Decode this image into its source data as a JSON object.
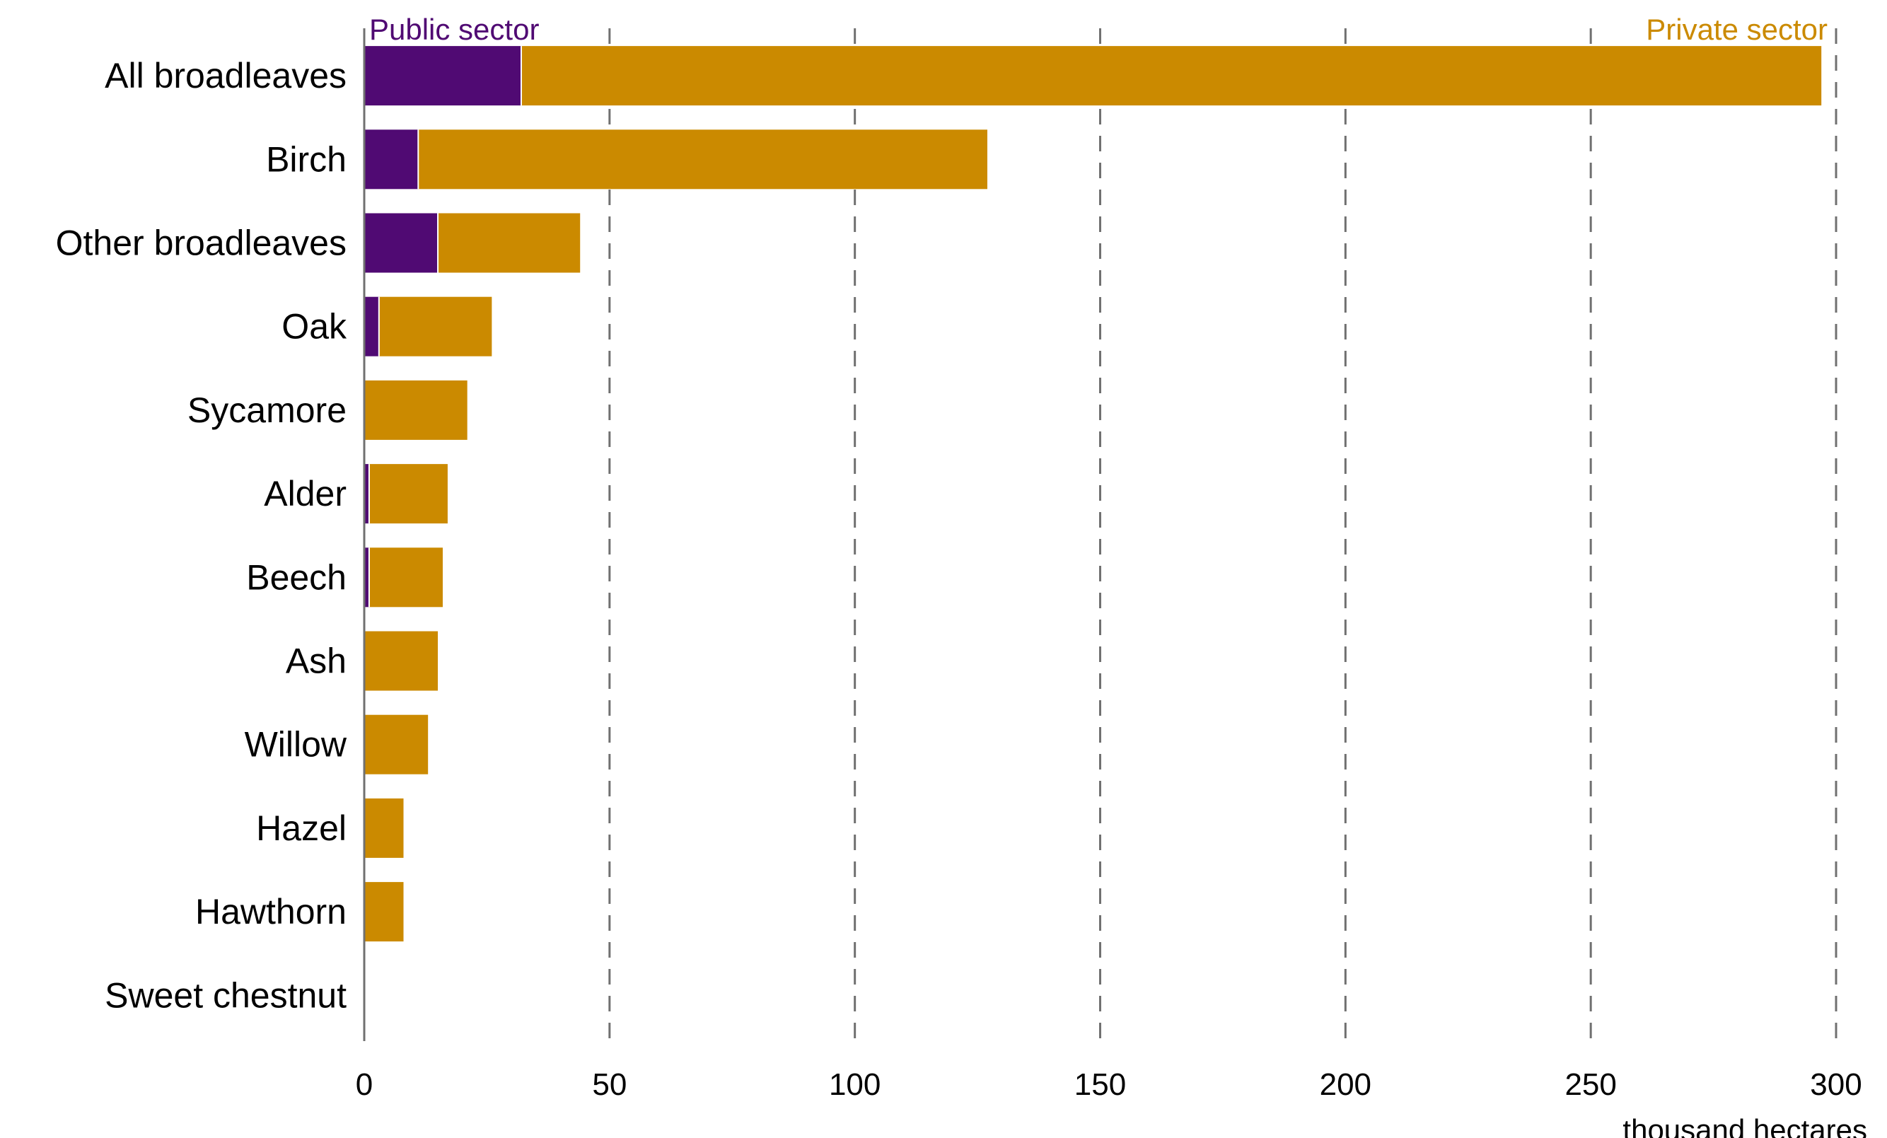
{
  "chart_data": {
    "type": "bar",
    "orientation": "horizontal",
    "stacked": true,
    "categories": [
      "All broadleaves",
      "Birch",
      "Other broadleaves",
      "Oak",
      "Sycamore",
      "Alder",
      "Beech",
      "Ash",
      "Willow",
      "Hazel",
      "Hawthorn",
      "Sweet chestnut"
    ],
    "series": [
      {
        "name": "Public sector",
        "color": "#500a73",
        "values": [
          32,
          11,
          15,
          3,
          0,
          1,
          1,
          0,
          0,
          0,
          0,
          0
        ]
      },
      {
        "name": "Private sector",
        "color": "#cb8a00",
        "values": [
          265,
          116,
          29,
          23,
          21,
          16,
          15,
          15,
          13,
          8,
          8,
          0
        ]
      }
    ],
    "xlim": [
      0,
      300
    ],
    "xticks": [
      0,
      50,
      100,
      150,
      200,
      250,
      300
    ],
    "xlabel": "thousand hectares",
    "grid": "vertical-dashed",
    "legend": {
      "public_label": "Public sector",
      "private_label": "Private sector",
      "placement": "top (left and right ends of axis)"
    }
  }
}
